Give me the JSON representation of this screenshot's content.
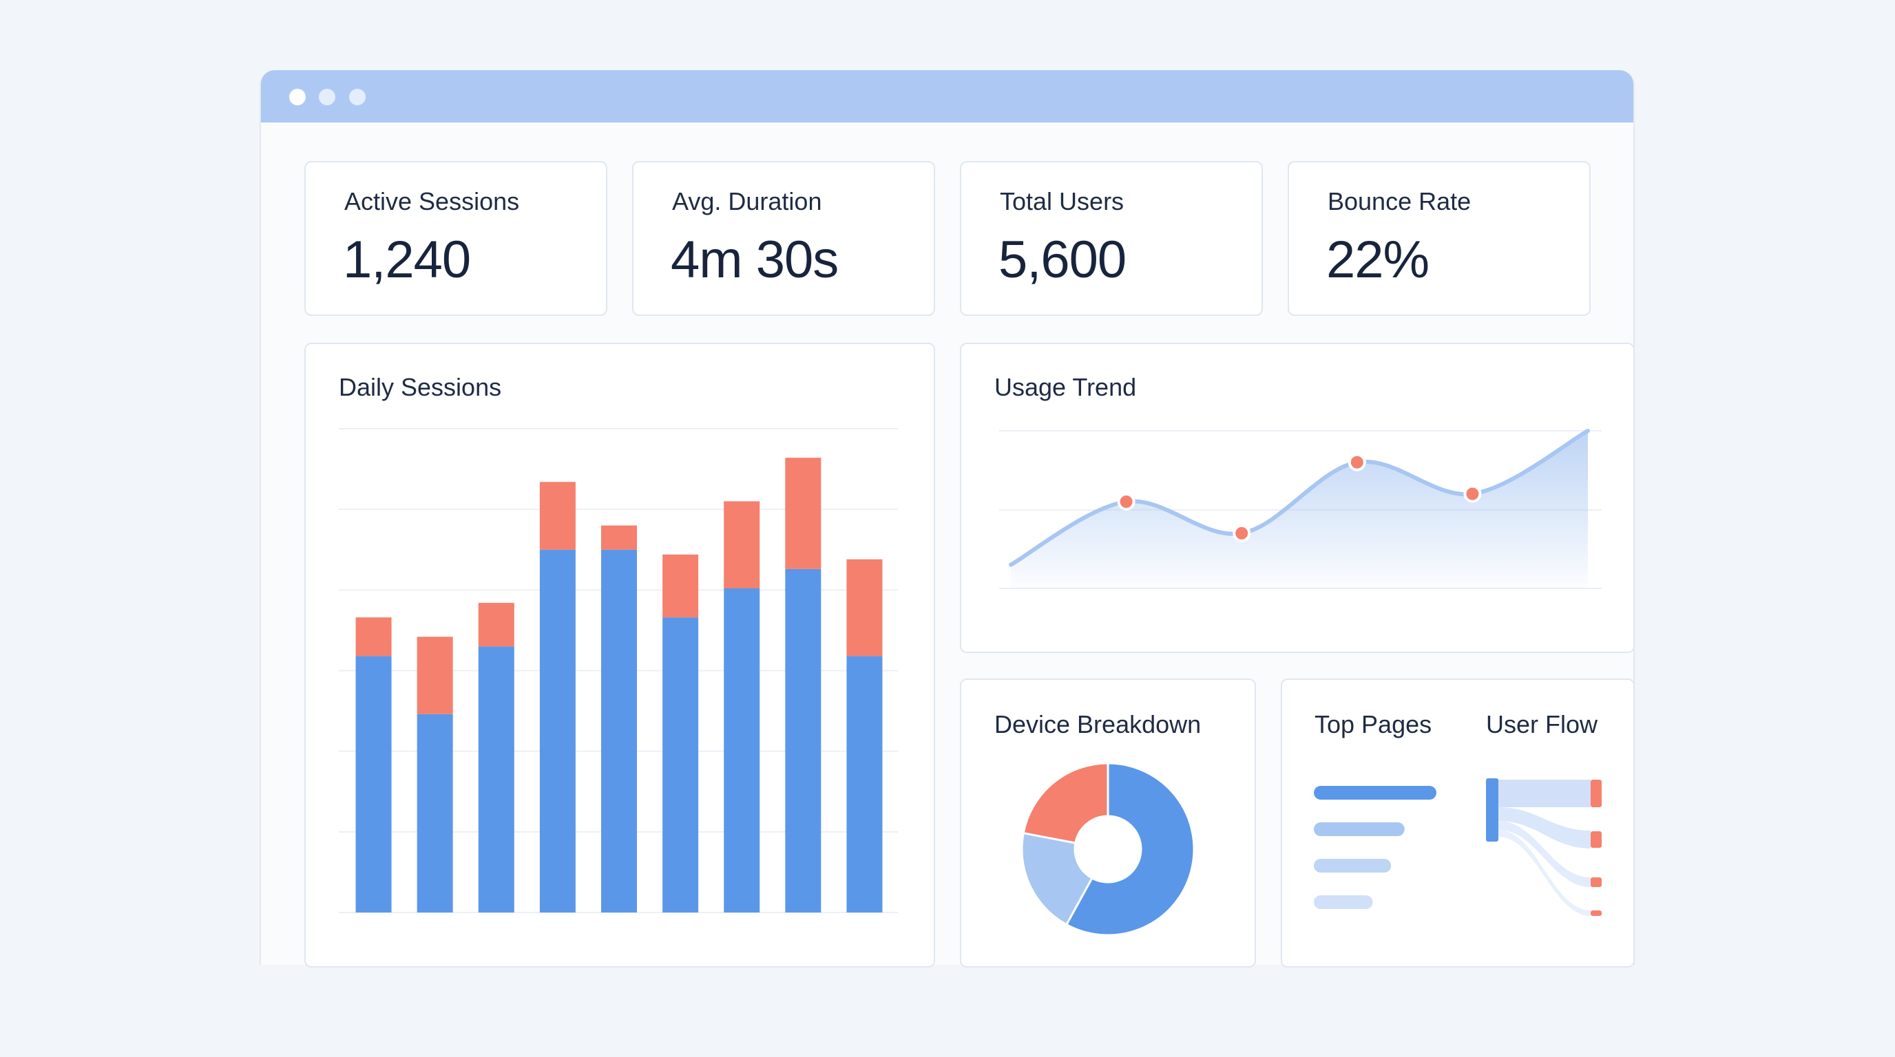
{
  "kpis": [
    {
      "label": "Active Sessions",
      "value": "1,240"
    },
    {
      "label": "Avg. Duration",
      "value": "4m 30s"
    },
    {
      "label": "Total Users",
      "value": "5,600"
    },
    {
      "label": "Bounce Rate",
      "value": "22%"
    }
  ],
  "panels": {
    "daily_sessions": "Daily Sessions",
    "usage_trend": "Usage Trend",
    "device_breakdown": "Device Breakdown",
    "top_pages": "Top Pages",
    "user_flow": "User Flow"
  },
  "colors": {
    "blue": "#5a97e8",
    "coral": "#f4806d",
    "light_blue": "#a8c6f2",
    "titlebar": "#adc9f3"
  },
  "chart_data": [
    {
      "type": "bar",
      "title": "Daily Sessions",
      "stacked": true,
      "categories": [
        "",
        "",
        "",
        "",
        "",
        "",
        "",
        "",
        ""
      ],
      "ylim": [
        0,
        100
      ],
      "grid": true,
      "series": [
        {
          "values": [
            53,
            41,
            55,
            75,
            75,
            61,
            67,
            71,
            53
          ]
        },
        {
          "values": [
            8,
            16,
            9,
            14,
            5,
            13,
            18,
            23,
            20
          ]
        }
      ]
    },
    {
      "type": "area",
      "title": "Usage Trend",
      "x": [
        0,
        1,
        2,
        3,
        4,
        5
      ],
      "y": [
        15,
        55,
        35,
        80,
        60,
        100
      ],
      "ylim": [
        0,
        100
      ],
      "markers": [
        1,
        2,
        3,
        4
      ],
      "grid": true
    },
    {
      "type": "pie",
      "title": "Device Breakdown",
      "donut": true,
      "values": [
        58,
        20,
        22
      ]
    },
    {
      "type": "bar",
      "title": "Top Pages",
      "orientation": "horizontal",
      "categories": [
        "",
        "",
        "",
        ""
      ],
      "values": [
        100,
        74,
        63,
        48
      ]
    }
  ]
}
